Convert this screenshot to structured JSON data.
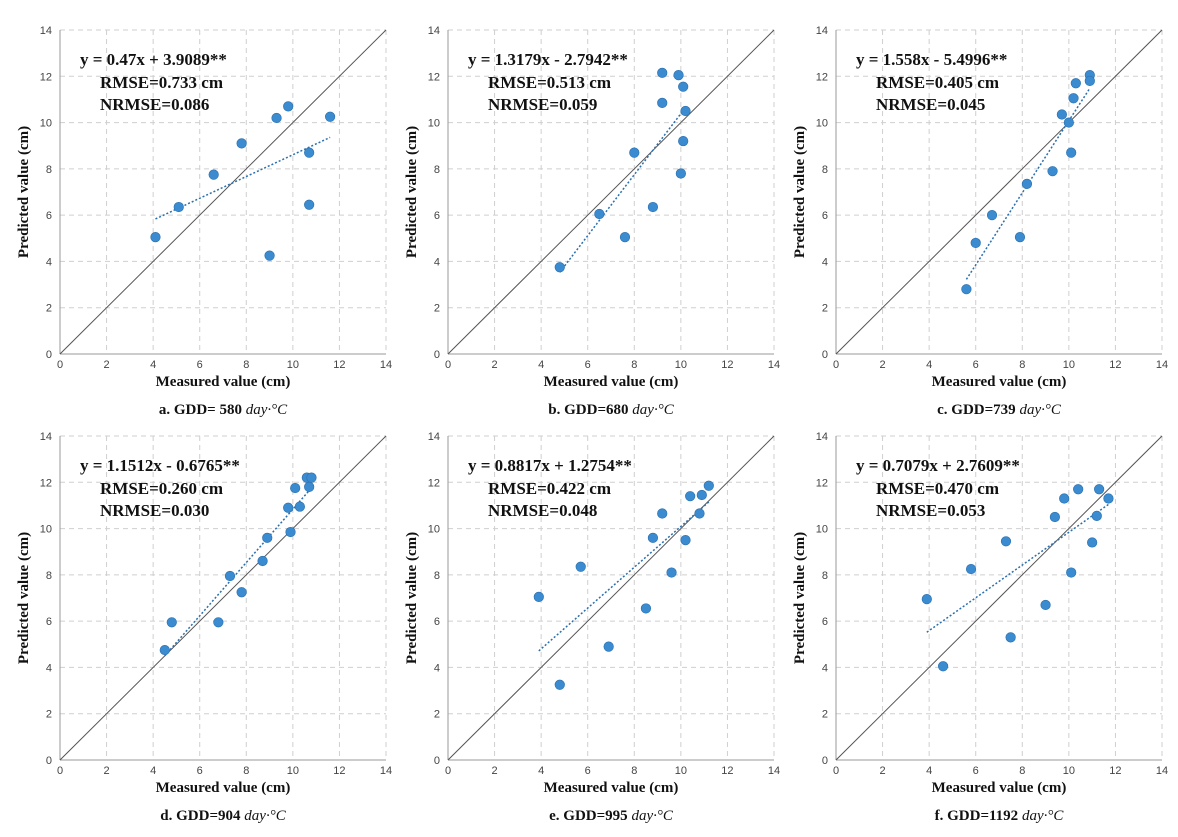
{
  "colors": {
    "point": "#3b8bd0",
    "point_edge": "#2a6fae",
    "trend": "#2a6fae",
    "identity": "#555555",
    "grid": "#cfcfcf"
  },
  "chart_data": [
    {
      "type": "scatter",
      "xlabel": "Measured value (cm)",
      "ylabel": "Predicted value (cm)",
      "xlim": [
        0,
        14
      ],
      "ylim": [
        0,
        14
      ],
      "xticks": [
        "0",
        "2",
        "4",
        "6",
        "8",
        "10",
        "12",
        "14"
      ],
      "yticks": [
        "0",
        "2",
        "4",
        "6",
        "8",
        "10",
        "12",
        "14"
      ],
      "grid": true,
      "equation": "y = 0.47x + 3.9089**",
      "rmse": "RMSE=0.733 cm",
      "nrmse": "NRMSE=0.086",
      "caption": "a. GDD= 580",
      "caption_unit": "day·°C",
      "points": [
        [
          4.1,
          5.05
        ],
        [
          5.1,
          6.35
        ],
        [
          6.6,
          7.75
        ],
        [
          7.8,
          9.1
        ],
        [
          9.0,
          4.25
        ],
        [
          9.3,
          10.2
        ],
        [
          9.8,
          10.7
        ],
        [
          10.7,
          8.7
        ],
        [
          10.7,
          6.45
        ],
        [
          11.6,
          10.25
        ]
      ],
      "trend": {
        "slope": 0.47,
        "intercept": 3.9089,
        "x_range": [
          4.1,
          11.6
        ]
      }
    },
    {
      "type": "scatter",
      "xlabel": "Measured value (cm)",
      "ylabel": "Predicted value (cm)",
      "xlim": [
        0,
        14
      ],
      "ylim": [
        0,
        14
      ],
      "xticks": [
        "0",
        "2",
        "4",
        "6",
        "8",
        "10",
        "12",
        "14"
      ],
      "yticks": [
        "0",
        "2",
        "4",
        "6",
        "8",
        "10",
        "12",
        "14"
      ],
      "grid": true,
      "equation": "y = 1.3179x - 2.7942**",
      "rmse": "RMSE=0.513 cm",
      "nrmse": "NRMSE=0.059",
      "caption": "b. GDD=680",
      "caption_unit": "day·°C",
      "points": [
        [
          4.8,
          3.75
        ],
        [
          6.5,
          6.05
        ],
        [
          7.6,
          5.05
        ],
        [
          8.0,
          8.7
        ],
        [
          8.8,
          6.35
        ],
        [
          9.2,
          12.15
        ],
        [
          9.2,
          10.85
        ],
        [
          9.9,
          12.05
        ],
        [
          10.0,
          7.8
        ],
        [
          10.1,
          11.55
        ],
        [
          10.1,
          9.2
        ],
        [
          10.2,
          10.5
        ]
      ],
      "trend": {
        "slope": 1.3179,
        "intercept": -2.7942,
        "x_range": [
          4.8,
          10.2
        ]
      }
    },
    {
      "type": "scatter",
      "xlabel": "Measured value (cm)",
      "ylabel": "Predicted value (cm)",
      "xlim": [
        0,
        14
      ],
      "ylim": [
        0,
        14
      ],
      "xticks": [
        "0",
        "2",
        "4",
        "6",
        "8",
        "10",
        "12",
        "14"
      ],
      "yticks": [
        "0",
        "2",
        "4",
        "6",
        "8",
        "10",
        "12",
        "14"
      ],
      "grid": true,
      "equation": "y = 1.558x - 5.4996**",
      "rmse": "RMSE=0.405 cm",
      "nrmse": "NRMSE=0.045",
      "caption": "c. GDD=739",
      "caption_unit": "day·°C",
      "points": [
        [
          5.6,
          2.8
        ],
        [
          6.0,
          4.8
        ],
        [
          6.7,
          6.0
        ],
        [
          7.9,
          5.05
        ],
        [
          8.2,
          7.35
        ],
        [
          9.3,
          7.9
        ],
        [
          9.7,
          10.35
        ],
        [
          10.0,
          10.0
        ],
        [
          10.1,
          8.7
        ],
        [
          10.2,
          11.05
        ],
        [
          10.3,
          11.7
        ],
        [
          10.9,
          12.05
        ],
        [
          10.9,
          11.8
        ]
      ],
      "trend": {
        "slope": 1.558,
        "intercept": -5.4996,
        "x_range": [
          5.6,
          10.9
        ]
      }
    },
    {
      "type": "scatter",
      "xlabel": "Measured value (cm)",
      "ylabel": "Predicted value (cm)",
      "xlim": [
        0,
        14
      ],
      "ylim": [
        0,
        14
      ],
      "xticks": [
        "0",
        "2",
        "4",
        "6",
        "8",
        "10",
        "12",
        "14"
      ],
      "yticks": [
        "0",
        "2",
        "4",
        "6",
        "8",
        "10",
        "12",
        "14"
      ],
      "grid": true,
      "equation": "y = 1.1512x - 0.6765**",
      "rmse": "RMSE=0.260 cm",
      "nrmse": "NRMSE=0.030",
      "caption": "d. GDD=904",
      "caption_unit": "day·°C",
      "points": [
        [
          4.5,
          4.75
        ],
        [
          4.8,
          5.95
        ],
        [
          6.8,
          5.95
        ],
        [
          7.3,
          7.95
        ],
        [
          7.8,
          7.25
        ],
        [
          8.7,
          8.6
        ],
        [
          8.9,
          9.6
        ],
        [
          9.8,
          10.9
        ],
        [
          9.9,
          9.85
        ],
        [
          10.1,
          11.75
        ],
        [
          10.3,
          10.95
        ],
        [
          10.6,
          12.2
        ],
        [
          10.7,
          11.8
        ],
        [
          10.8,
          12.2
        ]
      ],
      "trend": {
        "slope": 1.1512,
        "intercept": -0.6765,
        "x_range": [
          4.5,
          10.8
        ]
      }
    },
    {
      "type": "scatter",
      "xlabel": "Measured value (cm)",
      "ylabel": "Predicted value (cm)",
      "xlim": [
        0,
        14
      ],
      "ylim": [
        0,
        14
      ],
      "xticks": [
        "0",
        "2",
        "4",
        "6",
        "8",
        "10",
        "12",
        "14"
      ],
      "yticks": [
        "0",
        "2",
        "4",
        "6",
        "8",
        "10",
        "12",
        "14"
      ],
      "grid": true,
      "equation": "y = 0.8817x + 1.2754**",
      "rmse": "RMSE=0.422 cm",
      "nrmse": "NRMSE=0.048",
      "caption": "e. GDD=995",
      "caption_unit": "day·°C",
      "points": [
        [
          3.9,
          7.05
        ],
        [
          4.8,
          3.25
        ],
        [
          5.7,
          8.35
        ],
        [
          6.9,
          4.9
        ],
        [
          8.5,
          6.55
        ],
        [
          8.8,
          9.6
        ],
        [
          9.2,
          10.65
        ],
        [
          9.6,
          8.1
        ],
        [
          10.2,
          9.5
        ],
        [
          10.4,
          11.4
        ],
        [
          10.8,
          10.65
        ],
        [
          10.9,
          11.45
        ],
        [
          11.2,
          11.85
        ]
      ],
      "trend": {
        "slope": 0.8817,
        "intercept": 1.2754,
        "x_range": [
          3.9,
          11.2
        ]
      }
    },
    {
      "type": "scatter",
      "xlabel": "Measured value (cm)",
      "ylabel": "Predicted value (cm)",
      "xlim": [
        0,
        14
      ],
      "ylim": [
        0,
        14
      ],
      "xticks": [
        "0",
        "2",
        "4",
        "6",
        "8",
        "10",
        "12",
        "14"
      ],
      "yticks": [
        "0",
        "2",
        "4",
        "6",
        "8",
        "10",
        "12",
        "14"
      ],
      "grid": true,
      "equation": "y = 0.7079x + 2.7609**",
      "rmse": "RMSE=0.470 cm",
      "nrmse": "NRMSE=0.053",
      "caption": "f. GDD=1192",
      "caption_unit": "day·°C",
      "points": [
        [
          3.9,
          6.95
        ],
        [
          4.6,
          4.05
        ],
        [
          5.8,
          8.25
        ],
        [
          7.3,
          9.45
        ],
        [
          7.5,
          5.3
        ],
        [
          9.0,
          6.7
        ],
        [
          9.4,
          10.5
        ],
        [
          9.8,
          11.3
        ],
        [
          10.1,
          8.1
        ],
        [
          10.4,
          11.7
        ],
        [
          11.0,
          9.4
        ],
        [
          11.2,
          10.55
        ],
        [
          11.3,
          11.7
        ],
        [
          11.7,
          11.3
        ]
      ],
      "trend": {
        "slope": 0.7079,
        "intercept": 2.7609,
        "x_range": [
          3.9,
          11.7
        ]
      }
    }
  ]
}
